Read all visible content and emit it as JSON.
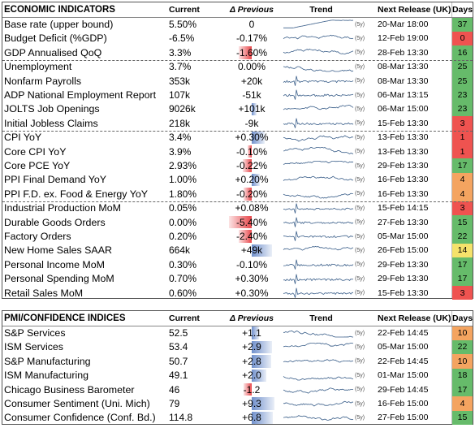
{
  "colors": {
    "green": "#66bb6a",
    "red": "#ef5350",
    "orange": "#f4a460",
    "yellow": "#f5e26b",
    "pos_bar": "#7090cc",
    "neg_bar": "#e8464a"
  },
  "economic": {
    "header": {
      "title": "ECONOMIC INDICATORS",
      "current": "Current",
      "delta": "Δ Previous",
      "trend": "Trend",
      "next": "Next Release (UK)",
      "days": "Days"
    },
    "rows": [
      {
        "name": "Base rate (upper bound)",
        "current": "5.50%",
        "delta": "0",
        "delta_value": 0,
        "next": "20-Mar 18:00",
        "days": "37",
        "days_color": "green",
        "y_label": "(5y)"
      },
      {
        "name": "Budget Deficit (%GDP)",
        "current": "-6.5%",
        "delta": "-0.17%",
        "delta_value": 0,
        "next": "12-Feb 19:00",
        "days": "0",
        "days_color": "red",
        "y_label": "(5y)"
      },
      {
        "name": "GDP Annualised QoQ",
        "current": "3.3%",
        "delta": "-1.60%",
        "delta_value": -0.3,
        "next": "28-Feb 13:30",
        "days": "16",
        "days_color": "green",
        "y_label": "(5y)"
      },
      {
        "name": "Unemployment",
        "current": "3.7%",
        "delta": "0.00%",
        "delta_value": 0,
        "next": "08-Mar 13:30",
        "days": "25",
        "days_color": "green",
        "y_label": "(5y)"
      },
      {
        "name": "Nonfarm Payrolls",
        "current": "353k",
        "delta": "+20k",
        "delta_value": 0,
        "next": "08-Mar 13:30",
        "days": "25",
        "days_color": "green",
        "y_label": "(5y)"
      },
      {
        "name": "ADP National Employment Report",
        "current": "107k",
        "delta": "-51k",
        "delta_value": 0,
        "next": "06-Mar 13:15",
        "days": "23",
        "days_color": "green",
        "y_label": "(5y)"
      },
      {
        "name": "JOLTS Job Openings",
        "current": "9026k",
        "delta": "+101k",
        "delta_value": 0.12,
        "next": "06-Mar 15:00",
        "days": "23",
        "days_color": "green",
        "y_label": "(5y)"
      },
      {
        "name": "Initial Jobless Claims",
        "current": "218k",
        "delta": "-9k",
        "delta_value": 0,
        "next": "15-Feb 13:30",
        "days": "3",
        "days_color": "red",
        "y_label": "(5y)"
      },
      {
        "name": "CPI YoY",
        "current": "3.4%",
        "delta": "+0.30%",
        "delta_value": 0.3,
        "next": "13-Feb 13:30",
        "days": "1",
        "days_color": "red",
        "y_label": "(5y)"
      },
      {
        "name": "Core CPI YoY",
        "current": "3.9%",
        "delta": "-0.10%",
        "delta_value": -0.1,
        "next": "13-Feb 13:30",
        "days": "1",
        "days_color": "red",
        "y_label": "(5y)"
      },
      {
        "name": "Core PCE YoY",
        "current": "2.93%",
        "delta": "-0.22%",
        "delta_value": -0.22,
        "next": "29-Feb 13:30",
        "days": "17",
        "days_color": "green",
        "y_label": "(5y)"
      },
      {
        "name": "PPI Final Demand YoY",
        "current": "1.00%",
        "delta": "+0.20%",
        "delta_value": 0.2,
        "next": "16-Feb 13:30",
        "days": "4",
        "days_color": "orange",
        "y_label": "(5y)"
      },
      {
        "name": "PPI F.D. ex. Food & Energy YoY",
        "current": "1.80%",
        "delta": "-0.20%",
        "delta_value": -0.2,
        "next": "16-Feb 13:30",
        "days": "4",
        "days_color": "orange",
        "y_label": "(5y)"
      },
      {
        "name": "Industrial Production MoM",
        "current": "0.05%",
        "delta": "+0.08%",
        "delta_value": 0,
        "next": "15-Feb 14:15",
        "days": "3",
        "days_color": "red",
        "y_label": "(5y)"
      },
      {
        "name": "Durable Goods Orders",
        "current": "0.00%",
        "delta": "-5.40%",
        "delta_value": -0.54,
        "next": "27-Feb 13:30",
        "days": "15",
        "days_color": "green",
        "y_label": "(5y)"
      },
      {
        "name": "Factory Orders",
        "current": "0.20%",
        "delta": "-2.40%",
        "delta_value": -0.3,
        "next": "05-Mar 15:00",
        "days": "22",
        "days_color": "green",
        "y_label": "(5y)"
      },
      {
        "name": "New Home Sales SAAR",
        "current": "664k",
        "delta": "+49k",
        "delta_value": 0.48,
        "next": "26-Feb 15:00",
        "days": "14",
        "days_color": "yellow",
        "y_label": "(5y)"
      },
      {
        "name": "Personal Income MoM",
        "current": "0.30%",
        "delta": "-0.10%",
        "delta_value": 0,
        "next": "29-Feb 13:30",
        "days": "17",
        "days_color": "green",
        "y_label": "(5y)"
      },
      {
        "name": "Personal Spending MoM",
        "current": "0.70%",
        "delta": "+0.30%",
        "delta_value": 0,
        "next": "29-Feb 13:30",
        "days": "17",
        "days_color": "green",
        "y_label": "(5y)"
      },
      {
        "name": "Retail Sales MoM",
        "current": "0.60%",
        "delta": "+0.30%",
        "delta_value": 0,
        "next": "15-Feb 13:30",
        "days": "3",
        "days_color": "red",
        "y_label": "(5y)"
      }
    ]
  },
  "pmi": {
    "header": {
      "title": "PMI/CONFIDENCE INDICES",
      "current": "Current",
      "delta": "Δ Previous",
      "trend": "Trend",
      "next": "Next Release (UK)",
      "days": "Days"
    },
    "rows": [
      {
        "name": "S&P Services",
        "current": "52.5",
        "delta": "+1.1",
        "delta_value": 0.18,
        "next": "22-Feb 14:45",
        "days": "10",
        "days_color": "orange",
        "y_label": "(5y)"
      },
      {
        "name": "ISM Services",
        "current": "53.4",
        "delta": "+2.9",
        "delta_value": 0.48,
        "next": "05-Mar 15:00",
        "days": "22",
        "days_color": "green",
        "y_label": "(5y)"
      },
      {
        "name": "S&P Manufacturing",
        "current": "50.7",
        "delta": "+2.8",
        "delta_value": 0.46,
        "next": "22-Feb 14:45",
        "days": "10",
        "days_color": "orange",
        "y_label": "(5y)"
      },
      {
        "name": "ISM Manufacturing",
        "current": "49.1",
        "delta": "+2.0",
        "delta_value": 0.34,
        "next": "01-Mar 15:00",
        "days": "18",
        "days_color": "green",
        "y_label": "(5y)"
      },
      {
        "name": "Chicago Business Barometer",
        "current": "46",
        "delta": "-1.2",
        "delta_value": -0.2,
        "next": "29-Feb 14:45",
        "days": "17",
        "days_color": "green",
        "y_label": "(5y)"
      },
      {
        "name": "Consumer Sentiment (Uni. Mich)",
        "current": "79",
        "delta": "+9.3",
        "delta_value": 0.55,
        "next": "16-Feb 15:00",
        "days": "4",
        "days_color": "orange",
        "y_label": "(5y)"
      },
      {
        "name": "Consumer Confidence (Conf. Bd.)",
        "current": "114.8",
        "delta": "+6.8",
        "delta_value": 0.5,
        "next": "27-Feb 15:00",
        "days": "15",
        "days_color": "green",
        "y_label": "(5y)"
      }
    ]
  }
}
